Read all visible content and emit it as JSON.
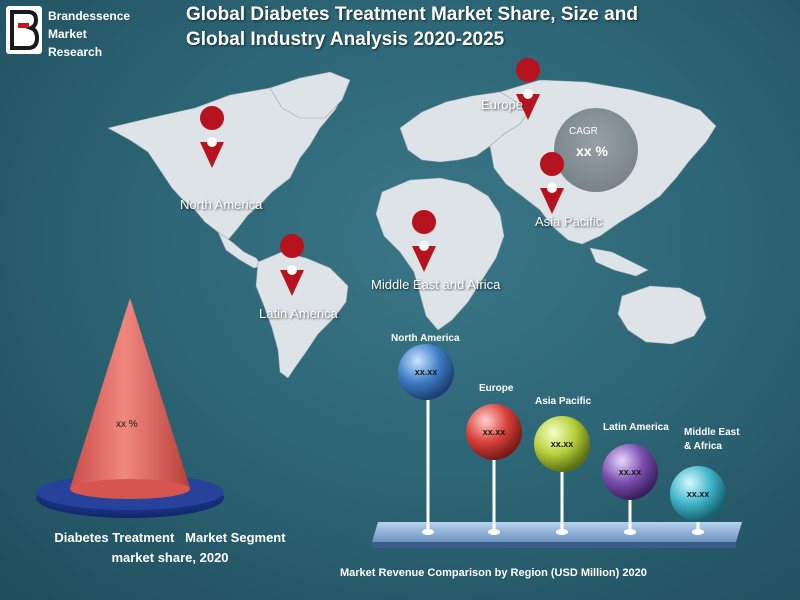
{
  "brand": {
    "line1": "Brandessence",
    "line2": "Market",
    "line3": "Research"
  },
  "title": {
    "line1": "Global Diabetes Treatment Market Share, Size and",
    "line2": "Global Industry Analysis 2020-2025"
  },
  "map_regions": {
    "north_america": "North America",
    "europe": "Europe",
    "asia_pacific": "Asia Pacific",
    "middle_east_africa": "Middle East and Africa",
    "latin_america": "Latin America"
  },
  "cagr": {
    "label": "CAGR",
    "value": "xx %"
  },
  "cone": {
    "value": "xx %",
    "caption_line1": "Diabetes Treatment   Market Segment",
    "caption_line2": "market share, 2020"
  },
  "bubbles": [
    {
      "region": "North America",
      "value": "xx.xx",
      "color": "#3f7fc6"
    },
    {
      "region": "Europe",
      "value": "xx.xx",
      "color": "#d9413c"
    },
    {
      "region": "Asia Pacific",
      "value": "xx.xx",
      "color": "#b6cf3a"
    },
    {
      "region": "Latin America",
      "value": "xx.xx",
      "color": "#7b4fae"
    },
    {
      "region_line1": "Middle East",
      "region_line2": "& Africa",
      "value": "xx.xx",
      "color": "#3fb4c9"
    }
  ],
  "bottom_caption": "Market Revenue Comparison by Region (USD Million) 2020",
  "colors": {
    "background": "#2d6676",
    "continent": "#dde3e7",
    "pin": "#b7131f",
    "cone": "#e06a63",
    "base": "#1c3c8e"
  }
}
